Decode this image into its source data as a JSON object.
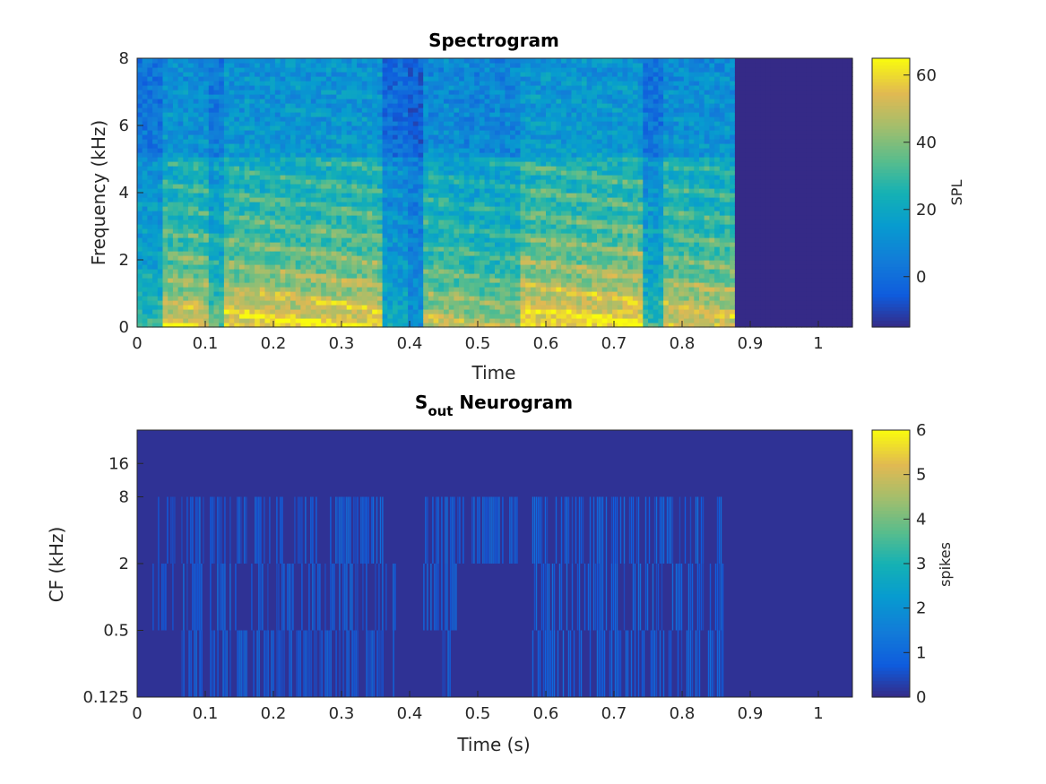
{
  "chart_data": [
    {
      "type": "heatmap",
      "title": "Spectrogram",
      "xlabel": "Time",
      "ylabel": "Frequency (kHz)",
      "xlim": [
        0,
        1.05
      ],
      "ylim": [
        0,
        8
      ],
      "xticks": [
        "0",
        "0.1",
        "0.2",
        "0.3",
        "0.4",
        "0.5",
        "0.6",
        "0.7",
        "0.8",
        "0.9",
        "1"
      ],
      "yticks": [
        "0",
        "2",
        "4",
        "6",
        "8"
      ],
      "colorbar": {
        "label": "SPL",
        "range": [
          -15,
          65
        ],
        "ticks": [
          "0",
          "20",
          "40",
          "60"
        ]
      },
      "colormap": "parula",
      "signal_end_time": 0.88,
      "segments": [
        {
          "t0": 0.0,
          "t1": 0.04,
          "level": 0.45
        },
        {
          "t0": 0.04,
          "t1": 0.105,
          "level": 0.85
        },
        {
          "t0": 0.105,
          "t1": 0.13,
          "level": 0.55
        },
        {
          "t0": 0.13,
          "t1": 0.36,
          "level": 0.9
        },
        {
          "t0": 0.36,
          "t1": 0.4,
          "level": 0.35
        },
        {
          "t0": 0.4,
          "t1": 0.42,
          "level": 0.2
        },
        {
          "t0": 0.42,
          "t1": 0.48,
          "level": 0.75
        },
        {
          "t0": 0.48,
          "t1": 0.56,
          "level": 0.7
        },
        {
          "t0": 0.56,
          "t1": 0.74,
          "level": 0.95
        },
        {
          "t0": 0.74,
          "t1": 0.77,
          "level": 0.45
        },
        {
          "t0": 0.77,
          "t1": 0.88,
          "level": 0.85
        }
      ]
    },
    {
      "type": "heatmap",
      "title_main": "S",
      "title_sub": "out",
      "title_rest": " Neurogram",
      "xlabel": "Time (s)",
      "ylabel": "CF (kHz)",
      "xlim": [
        0,
        1.05
      ],
      "xticks": [
        "0",
        "0.1",
        "0.2",
        "0.3",
        "0.4",
        "0.5",
        "0.6",
        "0.7",
        "0.8",
        "0.9",
        "1"
      ],
      "yticks": [
        "0.125",
        "0.5",
        "2",
        "8",
        "16"
      ],
      "colorbar": {
        "label": "spikes",
        "range": [
          0,
          6
        ],
        "ticks": [
          "0",
          "1",
          "2",
          "3",
          "4",
          "5",
          "6"
        ]
      },
      "colormap": "parula",
      "bands": [
        {
          "name": "0.125-0.5",
          "active": [
            [
              0.065,
              0.38
            ],
            [
              0.44,
              0.46
            ],
            [
              0.58,
              0.86
            ]
          ]
        },
        {
          "name": "0.5-2",
          "active": [
            [
              0.02,
              0.38
            ],
            [
              0.42,
              0.47
            ],
            [
              0.58,
              0.86
            ]
          ]
        },
        {
          "name": "2-8",
          "active": [
            [
              0.02,
              0.36
            ],
            [
              0.33,
              0.36
            ],
            [
              0.42,
              0.56
            ],
            [
              0.58,
              0.86
            ]
          ]
        },
        {
          "name": "8-32",
          "active": []
        }
      ]
    }
  ]
}
